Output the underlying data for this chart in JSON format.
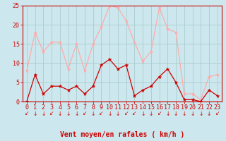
{
  "x": [
    0,
    1,
    2,
    3,
    4,
    5,
    6,
    7,
    8,
    9,
    10,
    11,
    12,
    13,
    14,
    15,
    16,
    17,
    18,
    19,
    20,
    21,
    22,
    23
  ],
  "wind_avg": [
    0,
    7,
    2,
    4,
    4,
    3,
    4,
    2,
    4,
    9.5,
    11,
    8.5,
    9.5,
    1.5,
    3,
    4,
    6.5,
    8.5,
    5,
    0.5,
    0.5,
    0,
    3,
    1.5
  ],
  "wind_gust": [
    8,
    18,
    13,
    15.5,
    15.5,
    8.5,
    15,
    8,
    15,
    19.5,
    25,
    24.5,
    21,
    15.5,
    10.5,
    13,
    24.5,
    19,
    18,
    2,
    2,
    0.5,
    6.5,
    7
  ],
  "color_avg": "#cc0000",
  "color_gust": "#ffaaaa",
  "bg_color": "#cce8ee",
  "grid_color": "#aacccc",
  "axis_color": "#cc0000",
  "xlabel": "Vent moyen/en rafales ( km/h )",
  "xlabel_fontsize": 7,
  "tick_fontsize": 6,
  "ylim": [
    0,
    25
  ],
  "yticks": [
    0,
    5,
    10,
    15,
    20,
    25
  ],
  "arrow_chars": [
    "↙",
    "↓",
    "↓",
    "↙",
    "↓",
    "↓",
    "↓",
    "↙",
    "↓",
    "↙",
    "↓",
    "↓",
    "↙",
    "↙",
    "↓",
    "↓",
    "↙",
    "↓",
    "↓",
    "↓",
    "↓",
    "↓",
    "↓",
    "↙"
  ]
}
